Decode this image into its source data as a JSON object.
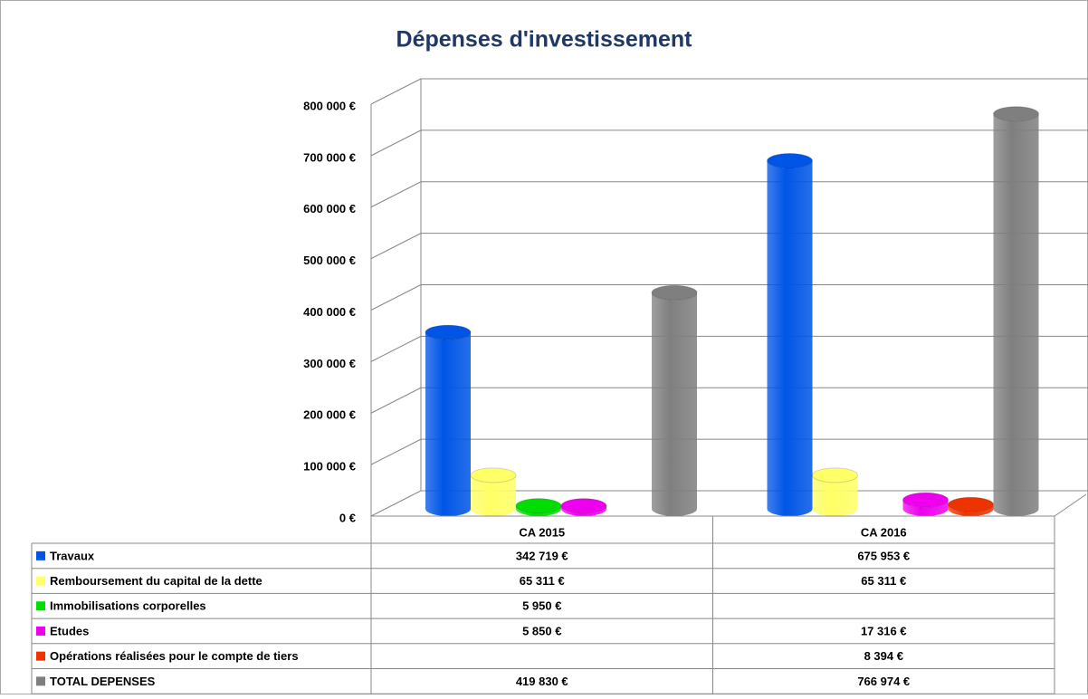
{
  "chart_data": {
    "type": "bar",
    "title": "Dépenses d'investissement",
    "categories": [
      "CA 2015",
      "CA 2016"
    ],
    "series": [
      {
        "name": "Travaux",
        "color": "#0055e6",
        "values": [
          342719,
          675953
        ],
        "value_labels": [
          "342 719 €",
          "675 953 €"
        ]
      },
      {
        "name": "Remboursement du capital de la dette",
        "color": "#ffff66",
        "values": [
          65311,
          65311
        ],
        "value_labels": [
          "65 311 €",
          "65 311 €"
        ]
      },
      {
        "name": "Immobilisations corporelles",
        "color": "#00dd00",
        "values": [
          5950,
          null
        ],
        "value_labels": [
          "5 950 €",
          null
        ]
      },
      {
        "name": "Etudes",
        "color": "#ee00ee",
        "values": [
          5850,
          17316
        ],
        "value_labels": [
          "5 850 €",
          "17 316 €"
        ]
      },
      {
        "name": "Opérations réalisées pour le compte de tiers",
        "color": "#ee3300",
        "values": [
          null,
          8394
        ],
        "value_labels": [
          null,
          "8 394 €"
        ]
      },
      {
        "name": "TOTAL DEPENSES",
        "color": "#7f7f7f",
        "values": [
          419830,
          766974
        ],
        "value_labels": [
          "419 830 €",
          "766 974 €"
        ]
      }
    ],
    "ylim": [
      0,
      800000
    ],
    "yticks": [
      {
        "value": 0,
        "label": "0 €"
      },
      {
        "value": 100000,
        "label": "100 000 €"
      },
      {
        "value": 200000,
        "label": "200 000 €"
      },
      {
        "value": 300000,
        "label": "300 000 €"
      },
      {
        "value": 400000,
        "label": "400 000 €"
      },
      {
        "value": 500000,
        "label": "500 000 €"
      },
      {
        "value": 600000,
        "label": "600 000 €"
      },
      {
        "value": 700000,
        "label": "700 000 €"
      },
      {
        "value": 800000,
        "label": "800 000 €"
      }
    ],
    "grid": true
  }
}
